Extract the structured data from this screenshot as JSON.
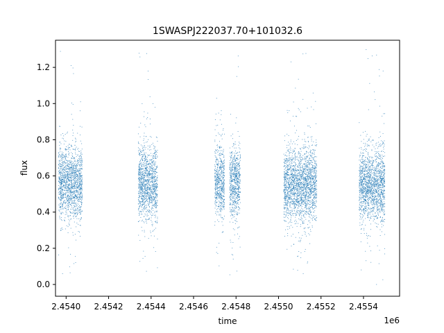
{
  "chart_data": {
    "type": "scatter",
    "title": "1SWASPJ222037.70+101032.6",
    "xlabel": "time",
    "ylabel": "flux",
    "x_offset_label": "1e6",
    "xlim": [
      2453910,
      2455530
    ],
    "ylim": [
      -0.065,
      1.35
    ],
    "x_ticks": [
      2453960,
      2454160,
      2454360,
      2454560,
      2454760,
      2454960,
      2455160,
      2455360
    ],
    "x_tick_labels": [
      "2.4540",
      "2.4542",
      "2.4544",
      "2.4546",
      "2.4548",
      "2.4550",
      "2.4552",
      "2.4554"
    ],
    "y_ticks": [
      0.0,
      0.2,
      0.4,
      0.6,
      0.8,
      1.0,
      1.2
    ],
    "y_tick_labels": [
      "0.0",
      "0.2",
      "0.4",
      "0.6",
      "0.8",
      "1.0",
      "1.2"
    ],
    "grid": false,
    "legend": "none",
    "point_color": "#1f77b4",
    "seasons": [
      {
        "time_range": [
          2453925,
          2454035
        ],
        "flux_median": 0.56,
        "flux_range": [
          0.01,
          1.3
        ]
      },
      {
        "time_range": [
          2454300,
          2454390
        ],
        "flux_median": 0.56,
        "flux_range": [
          0.01,
          1.31
        ]
      },
      {
        "time_range": [
          2454660,
          2454705
        ],
        "flux_median": 0.57,
        "flux_range": [
          0.02,
          1.32
        ]
      },
      {
        "time_range": [
          2454730,
          2454780
        ],
        "flux_median": 0.56,
        "flux_range": [
          0.02,
          1.3
        ]
      },
      {
        "time_range": [
          2454985,
          2455075
        ],
        "flux_median": 0.55,
        "flux_range": [
          0.0,
          1.32
        ]
      },
      {
        "time_range": [
          2455075,
          2455140
        ],
        "flux_median": 0.56,
        "flux_range": [
          0.01,
          1.3
        ]
      },
      {
        "time_range": [
          2455340,
          2455460
        ],
        "flux_median": 0.55,
        "flux_range": [
          0.0,
          1.32
        ]
      }
    ]
  }
}
